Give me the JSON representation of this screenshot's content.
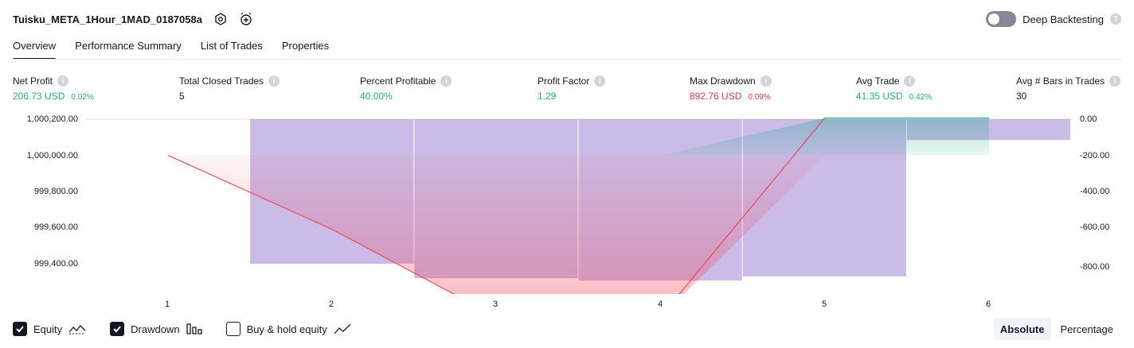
{
  "header": {
    "strategy_name": "Tuisku_META_1Hour_1MAD_0187058a",
    "deep_backtesting_label": "Deep Backtesting"
  },
  "tabs": [
    {
      "label": "Overview",
      "active": true
    },
    {
      "label": "Performance Summary",
      "active": false
    },
    {
      "label": "List of Trades",
      "active": false
    },
    {
      "label": "Properties",
      "active": false
    }
  ],
  "metrics": [
    {
      "label": "Net Profit",
      "value": "206.73 USD",
      "percent": "0.02%",
      "tone": "pos"
    },
    {
      "label": "Total Closed Trades",
      "value": "5",
      "percent": "",
      "tone": "dark"
    },
    {
      "label": "Percent Profitable",
      "value": "40.00%",
      "percent": "",
      "tone": "pos"
    },
    {
      "label": "Profit Factor",
      "value": "1.29",
      "percent": "",
      "tone": "pos"
    },
    {
      "label": "Max Drawdown",
      "value": "892.76 USD",
      "percent": "0.09%",
      "tone": "neg"
    },
    {
      "label": "Avg Trade",
      "value": "41.35 USD",
      "percent": "0.42%",
      "tone": "pos"
    },
    {
      "label": "Avg # Bars in Trades",
      "value": "30",
      "percent": "",
      "tone": "dark"
    }
  ],
  "chart_data": {
    "type": "line",
    "x": [
      1,
      2,
      3,
      4,
      5,
      6
    ],
    "x_tick_labels": [
      "1",
      "2",
      "3",
      "4",
      "5",
      "6"
    ],
    "left_axis_ticks": [
      "1,000,200.00",
      "1,000,000.00",
      "999,800.00",
      "999,600.00",
      "999,400.00"
    ],
    "right_axis_ticks": [
      "0.00",
      "-200.00",
      "-400.00",
      "-600.00",
      "-800.00"
    ],
    "left_ylim": [
      999300,
      1000200
    ],
    "right_ylim": [
      -900,
      0
    ],
    "series": [
      {
        "name": "Equity",
        "kind": "line",
        "axis": "left",
        "values": [
          1000000,
          999590,
          999107,
          999107,
          1000207,
          1000207
        ]
      },
      {
        "name": "Drawdown",
        "kind": "bar",
        "axis": "right",
        "bars": [
          {
            "x_start": 1.5,
            "x_end": 2.5,
            "value": -800
          },
          {
            "x_start": 2.5,
            "x_end": 3.5,
            "value": -880
          },
          {
            "x_start": 3.5,
            "x_end": 4.5,
            "value": -893
          },
          {
            "x_start": 4.5,
            "x_end": 5.5,
            "value": -870
          },
          {
            "x_start": 5.5,
            "x_end": 6.5,
            "value": -115
          }
        ]
      }
    ],
    "colors": {
      "equity_line": "#f23645",
      "profit": "#22ab94",
      "drawdown": "#7e57c2"
    },
    "grid": true
  },
  "legend": [
    {
      "label": "Equity",
      "checked": true,
      "icon": "equity-line-icon"
    },
    {
      "label": "Drawdown",
      "checked": true,
      "icon": "drawdown-bars-icon"
    },
    {
      "label": "Buy & hold equity",
      "checked": false,
      "icon": "buy-hold-line-icon"
    }
  ],
  "modes": [
    {
      "label": "Absolute",
      "active": true
    },
    {
      "label": "Percentage",
      "active": false
    }
  ]
}
